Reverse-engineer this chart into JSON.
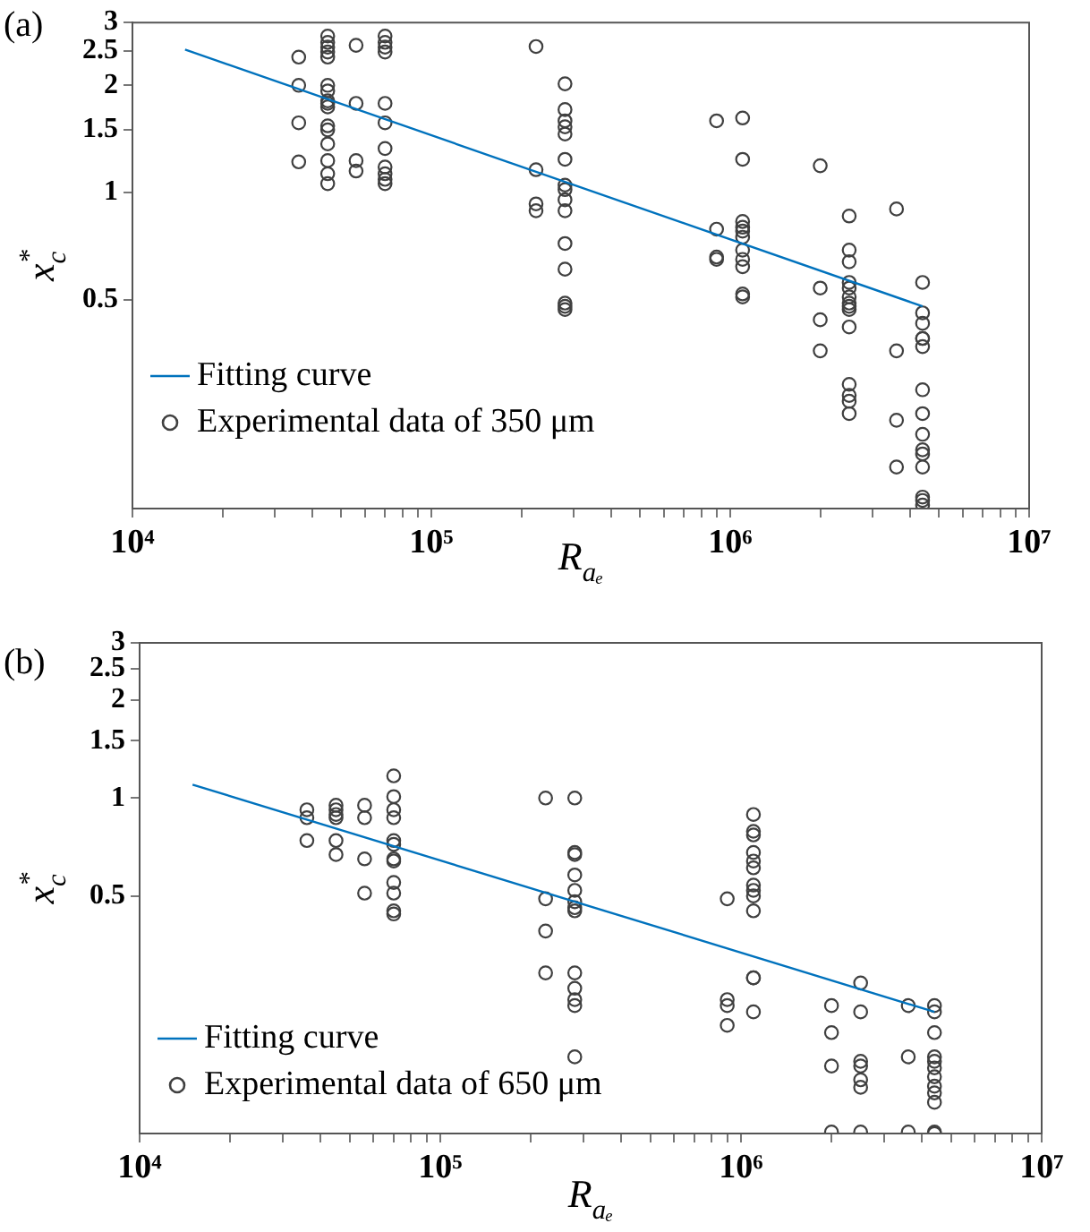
{
  "chart_data": [
    {
      "type": "scatter",
      "title": "(a)",
      "xlabel": "R$_{aₑ}$",
      "ylabel": "x$_{c}$$^{*}$",
      "log": "xy",
      "grid": false,
      "legend": "bottom left",
      "xlim": [
        10000,
        10000000
      ],
      "ylim": [
        0.13,
        3
      ],
      "xticks": [
        {
          "value": 10000,
          "label": "10⁴"
        },
        {
          "value": 20000,
          "label": null
        },
        {
          "value": 30000,
          "label": null
        },
        {
          "value": 40000,
          "label": null
        },
        {
          "value": 50000,
          "label": null
        },
        {
          "value": 60000,
          "label": null
        },
        {
          "value": 70000,
          "label": null
        },
        {
          "value": 80000,
          "label": null
        },
        {
          "value": 90000,
          "label": null
        },
        {
          "value": 100000,
          "label": "10⁵"
        },
        {
          "value": 200000,
          "label": null
        },
        {
          "value": 300000,
          "label": null
        },
        {
          "value": 400000,
          "label": null
        },
        {
          "value": 500000,
          "label": null
        },
        {
          "value": 600000,
          "label": null
        },
        {
          "value": 700000,
          "label": null
        },
        {
          "value": 800000,
          "label": null
        },
        {
          "value": 900000,
          "label": null
        },
        {
          "value": 1000000,
          "label": "10⁶"
        },
        {
          "value": 2000000,
          "label": null
        },
        {
          "value": 3000000,
          "label": null
        },
        {
          "value": 4000000,
          "label": null
        },
        {
          "value": 5000000,
          "label": null
        },
        {
          "value": 6000000,
          "label": null
        },
        {
          "value": 7000000,
          "label": null
        },
        {
          "value": 8000000,
          "label": null
        },
        {
          "value": 9000000,
          "label": null
        },
        {
          "value": 10000000,
          "label": "10⁷"
        }
      ],
      "yticks": [
        0.5,
        1,
        1.5,
        2,
        2.5,
        3
      ],
      "series": [
        {
          "type": "line",
          "name": "Fitting curve",
          "color": "#0072bd",
          "marker": "none",
          "x": [
            15000,
            4400000
          ],
          "values": [
            2.52,
            0.48
          ]
        },
        {
          "name": "Experimental data of 350 μm",
          "color": "#404040",
          "marker": "circle",
          "x": [
            36000,
            36000,
            36000,
            36000,
            45000,
            45000,
            45000,
            45000,
            45000,
            45000,
            45000,
            45000,
            45000,
            45000,
            45000,
            45000,
            45000,
            45000,
            45000,
            45000,
            56000,
            56000,
            56000,
            56000,
            70000,
            70000,
            70000,
            70000,
            70000,
            70000,
            70000,
            70000,
            70000,
            70000,
            70000,
            224000,
            224000,
            224000,
            224000,
            280000,
            280000,
            280000,
            280000,
            280000,
            280000,
            280000,
            280000,
            280000,
            280000,
            280000,
            280000,
            280000,
            280000,
            280000,
            900000,
            900000,
            900000,
            900000,
            1100000,
            1100000,
            1100000,
            1100000,
            1100000,
            1100000,
            1100000,
            1100000,
            1100000,
            1100000,
            1100000,
            2000000,
            2000000,
            2000000,
            2000000,
            2500000,
            2500000,
            2500000,
            2500000,
            2500000,
            2500000,
            2500000,
            2500000,
            2500000,
            2500000,
            2500000,
            2500000,
            2500000,
            2500000,
            3600000,
            3600000,
            3600000,
            3600000,
            4400000,
            4400000,
            4400000,
            4400000,
            4400000,
            4400000,
            4400000,
            4400000,
            4400000,
            4400000,
            4400000,
            4400000,
            4400000,
            4400000,
            4400000
          ],
          "values": [
            2.4,
            2.0,
            1.57,
            1.22,
            2.75,
            2.64,
            2.56,
            2.48,
            2.4,
            2.0,
            1.93,
            1.81,
            1.78,
            1.74,
            1.54,
            1.5,
            1.37,
            1.23,
            1.13,
            1.06,
            2.59,
            1.78,
            1.23,
            1.15,
            2.75,
            2.64,
            2.56,
            2.48,
            1.78,
            1.57,
            1.33,
            1.18,
            1.13,
            1.09,
            1.06,
            2.57,
            1.16,
            0.93,
            0.89,
            2.02,
            1.71,
            1.59,
            1.53,
            1.46,
            1.24,
            1.05,
            1.02,
            0.955,
            0.89,
            0.72,
            0.61,
            0.49,
            0.48,
            0.47,
            1.59,
            0.79,
            0.66,
            0.65,
            1.62,
            1.24,
            0.83,
            0.8,
            0.78,
            0.75,
            0.69,
            0.65,
            0.62,
            0.52,
            0.51,
            1.19,
            0.54,
            0.44,
            0.36,
            0.86,
            0.69,
            0.64,
            0.56,
            0.54,
            0.51,
            0.49,
            0.48,
            0.47,
            0.42,
            0.29,
            0.27,
            0.26,
            0.24,
            0.9,
            0.36,
            0.23,
            0.17,
            0.56,
            0.46,
            0.43,
            0.39,
            0.39,
            0.37,
            0.28,
            0.24,
            0.21,
            0.19,
            0.185,
            0.17,
            0.14,
            0.137,
            0.133
          ]
        }
      ]
    },
    {
      "type": "scatter",
      "title": "(b)",
      "xlabel": "R$_{aₑ}$",
      "ylabel": "x$_{c}$$^{*}$",
      "log": "xy",
      "grid": false,
      "legend": "bottom left",
      "xlim": [
        10000,
        10000000
      ],
      "ylim": [
        0.093,
        3
      ],
      "xticks": [
        {
          "value": 10000,
          "label": "10⁴"
        },
        {
          "value": 20000,
          "label": null
        },
        {
          "value": 30000,
          "label": null
        },
        {
          "value": 40000,
          "label": null
        },
        {
          "value": 50000,
          "label": null
        },
        {
          "value": 60000,
          "label": null
        },
        {
          "value": 70000,
          "label": null
        },
        {
          "value": 80000,
          "label": null
        },
        {
          "value": 90000,
          "label": null
        },
        {
          "value": 100000,
          "label": "10⁵"
        },
        {
          "value": 200000,
          "label": null
        },
        {
          "value": 300000,
          "label": null
        },
        {
          "value": 400000,
          "label": null
        },
        {
          "value": 500000,
          "label": null
        },
        {
          "value": 600000,
          "label": null
        },
        {
          "value": 700000,
          "label": null
        },
        {
          "value": 800000,
          "label": null
        },
        {
          "value": 900000,
          "label": null
        },
        {
          "value": 1000000,
          "label": "10⁶"
        },
        {
          "value": 2000000,
          "label": null
        },
        {
          "value": 3000000,
          "label": null
        },
        {
          "value": 4000000,
          "label": null
        },
        {
          "value": 5000000,
          "label": null
        },
        {
          "value": 6000000,
          "label": null
        },
        {
          "value": 7000000,
          "label": null
        },
        {
          "value": 8000000,
          "label": null
        },
        {
          "value": 9000000,
          "label": null
        },
        {
          "value": 10000000,
          "label": "10⁷"
        }
      ],
      "yticks": [
        0.5,
        1,
        1.5,
        2,
        2.5,
        3
      ],
      "series": [
        {
          "type": "line",
          "name": "Fitting curve",
          "color": "#0072bd",
          "marker": "none",
          "x": [
            15000,
            4400000
          ],
          "values": [
            1.1,
            0.22
          ]
        },
        {
          "name": "Experimental data of 650 μm",
          "color": "#404040",
          "marker": "circle",
          "x": [
            36000,
            36000,
            36000,
            45000,
            45000,
            45000,
            45000,
            45000,
            45000,
            56000,
            56000,
            56000,
            56000,
            70000,
            70000,
            70000,
            70000,
            70000,
            70000,
            70000,
            70000,
            70000,
            70000,
            70000,
            70000,
            224000,
            224000,
            224000,
            224000,
            280000,
            280000,
            280000,
            280000,
            280000,
            280000,
            280000,
            280000,
            280000,
            280000,
            280000,
            280000,
            280000,
            900000,
            900000,
            900000,
            900000,
            1100000,
            1100000,
            1100000,
            1100000,
            1100000,
            1100000,
            1100000,
            1100000,
            1100000,
            1100000,
            1100000,
            1100000,
            1100000,
            2000000,
            2000000,
            2000000,
            2000000,
            2500000,
            2500000,
            2500000,
            2500000,
            2500000,
            2500000,
            2500000,
            3600000,
            3600000,
            3600000,
            4400000,
            4400000,
            4400000,
            4400000,
            4400000,
            4400000,
            4400000,
            4400000,
            4400000,
            4400000,
            4400000,
            4400000
          ],
          "values": [
            0.92,
            0.87,
            0.74,
            0.95,
            0.92,
            0.89,
            0.87,
            0.74,
            0.67,
            0.95,
            0.87,
            0.65,
            0.51,
            1.17,
            1.01,
            0.92,
            0.87,
            0.74,
            0.72,
            0.65,
            0.64,
            0.55,
            0.51,
            0.45,
            0.44,
            1.0,
            0.49,
            0.39,
            0.29,
            1.0,
            0.68,
            0.67,
            0.58,
            0.52,
            0.48,
            0.46,
            0.45,
            0.29,
            0.26,
            0.24,
            0.23,
            0.16,
            0.49,
            0.24,
            0.23,
            0.2,
            0.89,
            0.79,
            0.77,
            0.68,
            0.64,
            0.61,
            0.54,
            0.52,
            0.5,
            0.45,
            0.28,
            0.28,
            0.22,
            0.23,
            0.19,
            0.15,
            0.094,
            0.27,
            0.22,
            0.155,
            0.15,
            0.136,
            0.129,
            0.094,
            0.23,
            0.16,
            0.094,
            0.23,
            0.22,
            0.19,
            0.16,
            0.155,
            0.148,
            0.139,
            0.13,
            0.124,
            0.116,
            0.094,
            0.093
          ]
        }
      ]
    }
  ]
}
